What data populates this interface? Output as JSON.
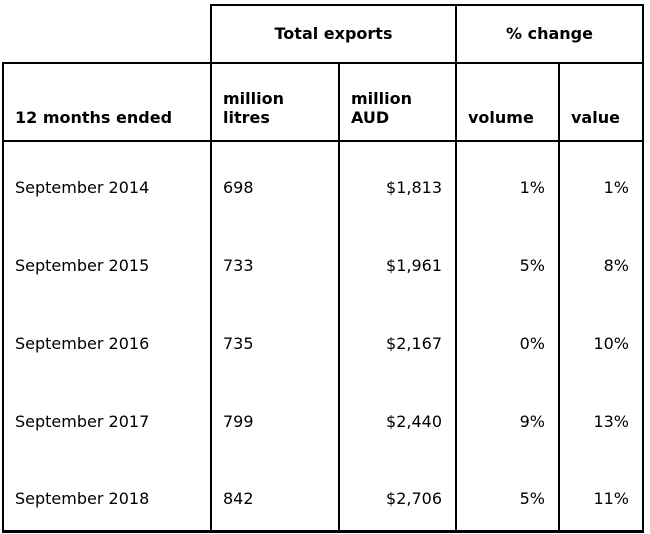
{
  "colors": {
    "background": "#ffffff",
    "border": "#000000",
    "text": "#000000"
  },
  "table": {
    "group_headers": {
      "total_exports": "Total exports",
      "pct_change": "% change"
    },
    "column_headers": {
      "period": "12 months ended",
      "million_litres": "million\nlitres",
      "million_aud": "million\nAUD",
      "volume": "volume",
      "value": "value"
    },
    "rows": [
      {
        "period": "September 2014",
        "million_litres": "698",
        "million_aud": "$1,813",
        "volume": "1%",
        "value": "1%"
      },
      {
        "period": "September 2015",
        "million_litres": "733",
        "million_aud": "$1,961",
        "volume": "5%",
        "value": "8%"
      },
      {
        "period": "September 2016",
        "million_litres": "735",
        "million_aud": "$2,167",
        "volume": "0%",
        "value": "10%"
      },
      {
        "period": "September 2017",
        "million_litres": "799",
        "million_aud": "$2,440",
        "volume": "9%",
        "value": "13%"
      },
      {
        "period": "September 2018",
        "million_litres": "842",
        "million_aud": "$2,706",
        "volume": "5%",
        "value": "11%"
      }
    ]
  },
  "chart_data": {
    "type": "table",
    "title": "",
    "column_groups": [
      {
        "label": "Total exports",
        "columns": [
          "million litres",
          "million AUD"
        ]
      },
      {
        "label": "% change",
        "columns": [
          "volume",
          "value"
        ]
      }
    ],
    "columns": [
      "12 months ended",
      "million litres",
      "million AUD",
      "volume",
      "value"
    ],
    "rows": [
      [
        "September 2014",
        698,
        1813,
        "1%",
        "1%"
      ],
      [
        "September 2015",
        733,
        1961,
        "5%",
        "8%"
      ],
      [
        "September 2016",
        735,
        2167,
        "0%",
        "10%"
      ],
      [
        "September 2017",
        799,
        2440,
        "9%",
        "13%"
      ],
      [
        "September 2018",
        842,
        2706,
        "5%",
        "11%"
      ]
    ]
  }
}
